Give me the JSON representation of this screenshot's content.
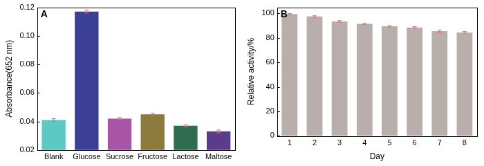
{
  "chart_data": [
    {
      "type": "bar",
      "title": "A",
      "categories": [
        "Blank",
        "Glucose",
        "Sucrose",
        "Fructose",
        "Lactose",
        "Maltose"
      ],
      "values": [
        0.041,
        0.117,
        0.042,
        0.045,
        0.037,
        0.033
      ],
      "error": [
        0.001,
        0.001,
        0.0008,
        0.0008,
        0.0007,
        0.001
      ],
      "colors": [
        "#5cc9c5",
        "#3b3f96",
        "#a855a8",
        "#8c7b3c",
        "#2e6e4e",
        "#5a3d8a"
      ],
      "y_label": "Absorbance(652 nm)",
      "ylim": [
        0.02,
        0.12
      ],
      "yticks": [
        0.02,
        0.04,
        0.06,
        0.08,
        {
          "value": 0.1,
          "label": "0.10"
        },
        0.12
      ],
      "grid": false
    },
    {
      "type": "bar",
      "title": "B",
      "categories": [
        "1",
        "2",
        "3",
        "4",
        "5",
        "6",
        "7",
        "8"
      ],
      "values": [
        99.5,
        97.5,
        93.5,
        91.5,
        89.5,
        88.5,
        85.5,
        84.5
      ],
      "error": [
        0.6,
        0.6,
        0.7,
        0.6,
        0.6,
        0.7,
        0.8,
        0.7
      ],
      "color": "#b8aeab",
      "x_label": "Day",
      "y_label": "Relative activity/%",
      "ylim": [
        0,
        105
      ],
      "yticks": [
        0,
        20,
        40,
        60,
        80,
        100
      ],
      "grid": false
    }
  ]
}
